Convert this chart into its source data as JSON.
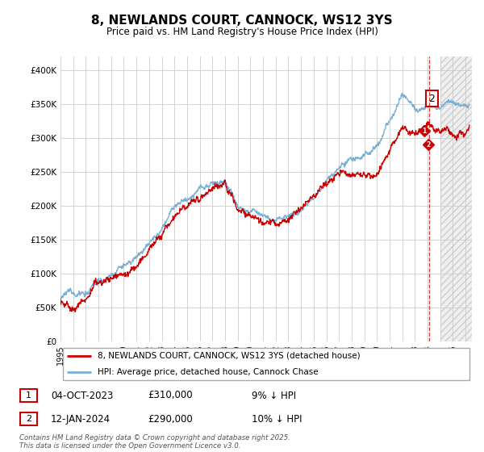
{
  "title": "8, NEWLANDS COURT, CANNOCK, WS12 3YS",
  "subtitle": "Price paid vs. HM Land Registry's House Price Index (HPI)",
  "ylim": [
    0,
    420000
  ],
  "yticks": [
    0,
    50000,
    100000,
    150000,
    200000,
    250000,
    300000,
    350000,
    400000
  ],
  "xlim_start": 1995.0,
  "xlim_end": 2027.5,
  "legend_label_red": "8, NEWLANDS COURT, CANNOCK, WS12 3YS (detached house)",
  "legend_label_blue": "HPI: Average price, detached house, Cannock Chase",
  "red_color": "#cc0000",
  "blue_color": "#7ab0d4",
  "sale1_date": "04-OCT-2023",
  "sale1_price": "£310,000",
  "sale1_hpi": "9% ↓ HPI",
  "sale2_date": "12-JAN-2024",
  "sale2_price": "£290,000",
  "sale2_hpi": "10% ↓ HPI",
  "footnote": "Contains HM Land Registry data © Crown copyright and database right 2025.\nThis data is licensed under the Open Government Licence v3.0.",
  "grid_color": "#cccccc",
  "bg_color": "#ffffff",
  "sale_x1": 2023.75,
  "sale_y1": 310000,
  "sale_x2": 2024.04,
  "sale_y2": 290000,
  "vline_x": 2024.1,
  "future_shade_start": 2025.0
}
